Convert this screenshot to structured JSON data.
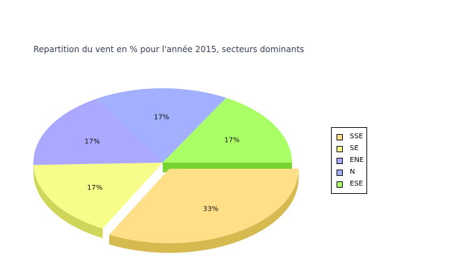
{
  "chart_data": {
    "type": "pie",
    "title": "Repartition du vent en % pour l'année 2015, secteurs dominants",
    "slices": [
      {
        "name": "SSE",
        "value": 33,
        "label": "33%",
        "color": "#ffdf88",
        "side_color": "#d6b94f",
        "exploded": true
      },
      {
        "name": "SE",
        "value": 17,
        "label": "17%",
        "color": "#f6fd88",
        "side_color": "#cfd65a",
        "exploded": false
      },
      {
        "name": "ENE",
        "value": 17,
        "label": "17%",
        "color": "#aaa8ff",
        "side_color": "#8886d6",
        "exploded": false
      },
      {
        "name": "N",
        "value": 17,
        "label": "17%",
        "color": "#a3afff",
        "side_color": "#7f8bd6",
        "exploded": false
      },
      {
        "name": "ESE",
        "value": 17,
        "label": "17%",
        "color": "#aaff66",
        "side_color": "#77d433",
        "exploded": false
      }
    ],
    "legend": {
      "placement": "right",
      "entries": [
        {
          "label": "SSE",
          "color": "#ffdf88"
        },
        {
          "label": "SE",
          "color": "#f6fd88"
        },
        {
          "label": "ENE",
          "color": "#aaa8ff"
        },
        {
          "label": "N",
          "color": "#a3afff"
        },
        {
          "label": "ESE",
          "color": "#aaff66"
        }
      ]
    },
    "three_d": true
  }
}
